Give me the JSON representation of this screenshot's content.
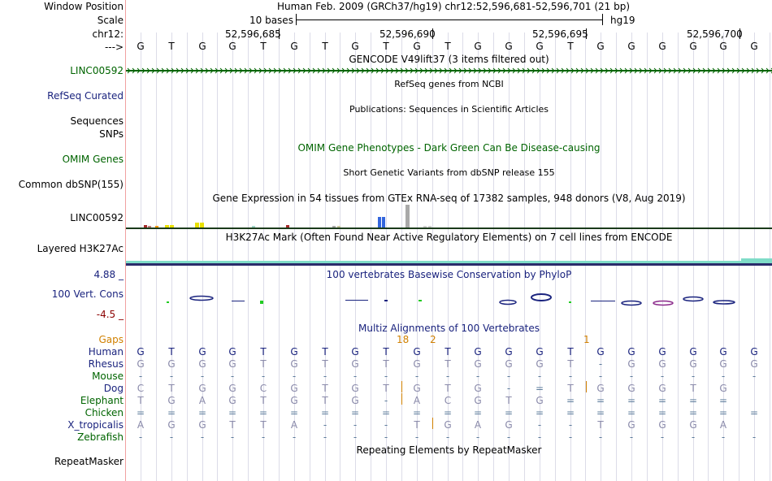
{
  "colors": {
    "navy": "#1a237e",
    "green": "#006400",
    "orange": "#d08000",
    "maroon": "#8b0000",
    "gray": "#808080",
    "teal": "#7fdcc8"
  },
  "labels": {
    "window_position": "Window Position",
    "scale": "Scale",
    "chr": "chr12:",
    "strand": "--->",
    "gencode_gene": "LINC00592",
    "refseq": "RefSeq Curated",
    "sequences": "Sequences",
    "snps": "SNPs",
    "omim": "OMIM Genes",
    "dbsnp": "Common dbSNP(155)",
    "gtex_gene": "LINC00592",
    "h3k27ac": "Layered H3K27Ac",
    "phylop_max": "4.88 _",
    "phylop_name": "100 Vert. Cons",
    "phylop_min": "-4.5 _",
    "gaps": "Gaps",
    "repeatmasker": "RepeatMasker"
  },
  "header": {
    "assembly": "Human Feb. 2009 (GRCh37/hg19)   chr12:52,596,681-52,596,701 (21 bp)",
    "scale_bases": "10 bases",
    "scale_db": "hg19",
    "coords": [
      "52,596,685",
      "52,596,690",
      "52,596,695",
      "52,596,700"
    ]
  },
  "dna": [
    "G",
    "T",
    "G",
    "G",
    "T",
    "G",
    "T",
    "G",
    "T",
    "G",
    "T",
    "G",
    "G",
    "G",
    "T",
    "G",
    "G",
    "G",
    "G",
    "G",
    "G"
  ],
  "track_titles": {
    "gencode": "GENCODE V49lift37 (3 items filtered out)",
    "refseq": "RefSeq genes from NCBI",
    "publications": "Publications: Sequences in Scientific Articles",
    "omim": "OMIM Gene Phenotypes - Dark Green Can Be Disease-causing",
    "dbsnp": "Short Genetic Variants from dbSNP release 155",
    "gtex": "Gene Expression in 54 tissues from GTEx RNA-seq of 17382 samples, 948 donors (V8, Aug 2019)",
    "h3k27ac": "H3K27Ac Mark (Often Found Near Active Regulatory Elements) on 7 cell lines from ENCODE",
    "phylop": "100 vertebrates Basewise Conservation by PhyloP",
    "multiz": "Multiz Alignments of 100 Vertebrates",
    "repeatmasker": "Repeating Elements by RepeatMasker"
  },
  "gap_counts": {
    "col7": "18",
    "col9": "2",
    "col15": "1"
  },
  "species": [
    {
      "name": "Human",
      "color": "#1a237e",
      "bases": [
        "G",
        "T",
        "G",
        "G",
        "T",
        "G",
        "T",
        "G",
        "T",
        "G",
        "T",
        "G",
        "G",
        "G",
        "T",
        "G",
        "G",
        "G",
        "G",
        "G",
        "G"
      ]
    },
    {
      "name": "Rhesus",
      "color": "#1a237e",
      "bases": [
        "G",
        "G",
        "G",
        "G",
        "T",
        "G",
        "T",
        "G",
        "T",
        "G",
        "T",
        "G",
        "G",
        "G",
        "T",
        "-",
        "G",
        "G",
        "G",
        "G",
        "G"
      ]
    },
    {
      "name": "Mouse",
      "color": "#006400",
      "bases": [
        "-",
        "-",
        "-",
        "-",
        "-",
        "-",
        "-",
        "-",
        "-",
        "-",
        "-",
        "-",
        "-",
        "-",
        "-",
        "-",
        "-",
        "-",
        "-",
        "-",
        "-"
      ]
    },
    {
      "name": "Dog",
      "color": "#1a237e",
      "bases": [
        "C",
        "T",
        "G",
        "G",
        "C",
        "G",
        "T",
        "G",
        "T",
        "",
        "G",
        "T",
        "G",
        "-",
        "=",
        "",
        "T",
        "G",
        "G",
        "G",
        "T",
        "G"
      ]
    },
    {
      "name": "Elephant",
      "color": "#006400",
      "bases": [
        "T",
        "G",
        "A",
        "G",
        "T",
        "G",
        "T",
        "G",
        "-",
        "",
        "A",
        "C",
        "G",
        "T",
        "G",
        "=",
        "",
        "=",
        "=",
        "=",
        "=",
        "="
      ]
    },
    {
      "name": "Chicken",
      "color": "#006400",
      "bases": [
        "=",
        "=",
        "=",
        "=",
        "=",
        "=",
        "=",
        "=",
        "=",
        "=",
        "=",
        "=",
        "=",
        "=",
        "=",
        "=",
        "=",
        "=",
        "=",
        "=",
        "="
      ]
    },
    {
      "name": "X_tropicalis",
      "color": "#1a237e",
      "bases": [
        "A",
        "G",
        "G",
        "T",
        "T",
        "A",
        "-",
        "-",
        "-",
        "",
        "T",
        "G",
        "A",
        "G",
        "-",
        "-",
        "T",
        "G",
        "G",
        "G",
        "A"
      ]
    },
    {
      "name": "Zebrafish",
      "color": "#006400",
      "bases": [
        "-",
        "-",
        "-",
        "-",
        "-",
        "-",
        "-",
        "-",
        "-",
        "-",
        "-",
        "-",
        "-",
        "-",
        "-",
        "-",
        "-",
        "-",
        "-",
        "-",
        "-"
      ]
    }
  ]
}
